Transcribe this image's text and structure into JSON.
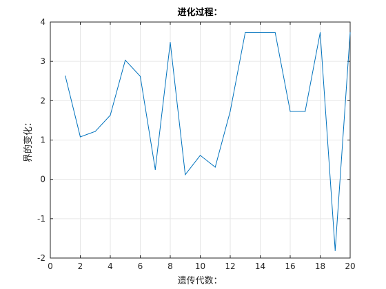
{
  "chart_data": {
    "type": "line",
    "title": "进化过程：",
    "xlabel": "遗传代数：",
    "ylabel": "界的变化：",
    "xlim": [
      0,
      20
    ],
    "ylim": [
      -2,
      4
    ],
    "xticks": [
      0,
      2,
      4,
      6,
      8,
      10,
      12,
      14,
      16,
      18,
      20
    ],
    "yticks": [
      -2,
      -1,
      0,
      1,
      2,
      3,
      4
    ],
    "xtick_labels": [
      "0",
      "2",
      "4",
      "6",
      "8",
      "10",
      "12",
      "14",
      "16",
      "18",
      "20"
    ],
    "ytick_labels": [
      "-2",
      "-1",
      "0",
      "1",
      "2",
      "3",
      "4"
    ],
    "grid": true,
    "legend": false,
    "series": [
      {
        "color": "#0072BD",
        "x": [
          1,
          2,
          3,
          4,
          5,
          6,
          7,
          8,
          9,
          10,
          11,
          12,
          13,
          14,
          15,
          16,
          17,
          18,
          19,
          20
        ],
        "y": [
          2.63,
          1.08,
          1.22,
          1.63,
          3.03,
          2.62,
          0.25,
          3.48,
          0.12,
          0.61,
          0.31,
          1.73,
          3.73,
          3.73,
          3.73,
          1.73,
          1.73,
          3.73,
          -1.81,
          3.73
        ]
      }
    ]
  }
}
